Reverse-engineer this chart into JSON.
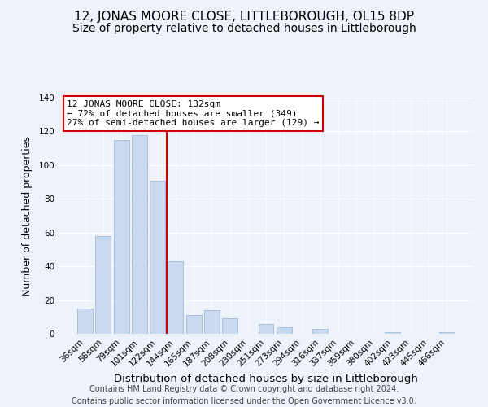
{
  "title": "12, JONAS MOORE CLOSE, LITTLEBOROUGH, OL15 8DP",
  "subtitle": "Size of property relative to detached houses in Littleborough",
  "xlabel": "Distribution of detached houses by size in Littleborough",
  "ylabel": "Number of detached properties",
  "categories": [
    "36sqm",
    "58sqm",
    "79sqm",
    "101sqm",
    "122sqm",
    "144sqm",
    "165sqm",
    "187sqm",
    "208sqm",
    "230sqm",
    "251sqm",
    "273sqm",
    "294sqm",
    "316sqm",
    "337sqm",
    "359sqm",
    "380sqm",
    "402sqm",
    "423sqm",
    "445sqm",
    "466sqm"
  ],
  "values": [
    15,
    58,
    115,
    118,
    91,
    43,
    11,
    14,
    9,
    0,
    6,
    4,
    0,
    3,
    0,
    0,
    0,
    1,
    0,
    0,
    1
  ],
  "bar_color": "#c9d9f0",
  "bar_edge_color": "#a0b8d8",
  "vline_x": 4.5,
  "vline_color": "#cc0000",
  "annotation_text": "12 JONAS MOORE CLOSE: 132sqm\n← 72% of detached houses are smaller (349)\n27% of semi-detached houses are larger (129) →",
  "annotation_box_color": "#ffffff",
  "annotation_box_edge": "#cc0000",
  "ylim": [
    0,
    140
  ],
  "yticks": [
    0,
    20,
    40,
    60,
    80,
    100,
    120,
    140
  ],
  "footer": "Contains HM Land Registry data © Crown copyright and database right 2024.\nContains public sector information licensed under the Open Government Licence v3.0.",
  "title_fontsize": 11,
  "subtitle_fontsize": 10,
  "xlabel_fontsize": 9.5,
  "ylabel_fontsize": 9,
  "tick_fontsize": 7.5,
  "footer_fontsize": 7,
  "background_color": "#eef2fb"
}
